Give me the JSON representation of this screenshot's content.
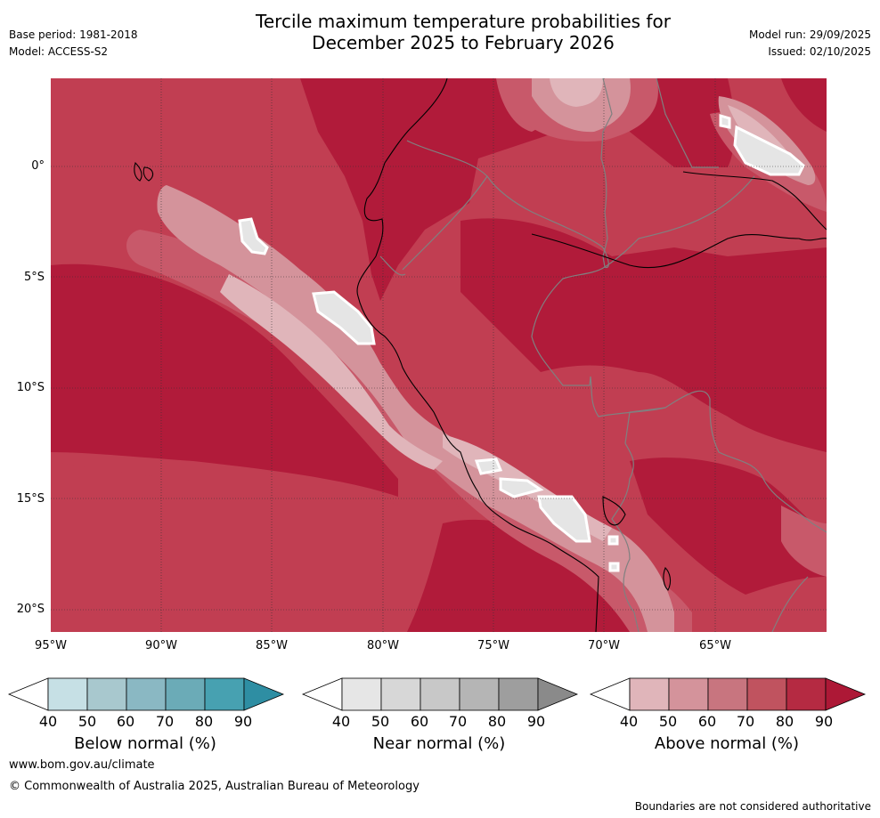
{
  "header": {
    "title_line1": "Tercile maximum temperature probabilities for",
    "title_line2": "December 2025 to February 2026",
    "base_period": "Base period: 1981-2018",
    "model": "Model: ACCESS-S2",
    "model_run": "Model run: 29/09/2025",
    "issued": "Issued: 02/10/2025"
  },
  "map": {
    "lat_labels": [
      "0°",
      "5°S",
      "10°S",
      "15°S",
      "20°S"
    ],
    "lon_labels": [
      "95°W",
      "90°W",
      "85°W",
      "80°W",
      "75°W",
      "70°W",
      "65°W"
    ],
    "colors": {
      "above_90": "#b11b3a",
      "above_80": "#c13e52",
      "above_70": "#c8596a",
      "above_60": "#d4939b",
      "above_50": "#e0b5ba",
      "near_40": "#e5e5e5",
      "border": "#808080",
      "coast": "#000000"
    }
  },
  "colorbars": [
    {
      "title": "Below normal (%)",
      "ticks": [
        "40",
        "50",
        "60",
        "70",
        "80",
        "90"
      ],
      "colors": [
        "#ffffff",
        "#c6e0e5",
        "#a8c8ce",
        "#8ab8c3",
        "#6babb7",
        "#47a1b1",
        "#2e8ea3"
      ]
    },
    {
      "title": "Near normal (%)",
      "ticks": [
        "40",
        "50",
        "60",
        "70",
        "80",
        "90"
      ],
      "colors": [
        "#ffffff",
        "#e6e6e6",
        "#d7d7d7",
        "#c8c8c8",
        "#b5b5b5",
        "#9e9e9e",
        "#8a8a8a"
      ]
    },
    {
      "title": "Above normal (%)",
      "ticks": [
        "40",
        "50",
        "60",
        "70",
        "80",
        "90"
      ],
      "colors": [
        "#ffffff",
        "#e0b5ba",
        "#d4939b",
        "#c8757f",
        "#c0535f",
        "#b52a42",
        "#ad1836"
      ]
    }
  ],
  "footer": {
    "website": "www.bom.gov.au/climate",
    "copyright": "© Commonwealth of Australia 2025, Australian Bureau of Meteorology",
    "disclaimer": "Boundaries are not considered authoritative"
  }
}
